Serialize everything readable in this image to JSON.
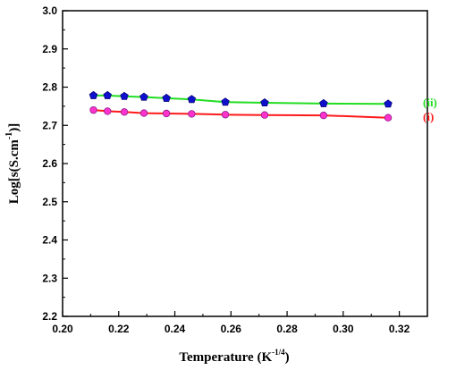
{
  "chart_data": {
    "type": "line",
    "xlabel": "Temperature (K",
    "xlabel_sup": "-1/4",
    "xlabel_close": ")",
    "ylabel": "Log[s(S.cm",
    "ylabel_sup": "-1",
    "ylabel_close": ")]",
    "xlim": [
      0.2,
      0.33
    ],
    "ylim": [
      2.2,
      3.0
    ],
    "x_ticks": [
      "0.20",
      "0.22",
      "0.24",
      "0.26",
      "0.28",
      "0.30",
      "0.32"
    ],
    "y_ticks": [
      "2.2",
      "2.3",
      "2.4",
      "2.5",
      "2.6",
      "2.7",
      "2.8",
      "2.9",
      "3.0"
    ],
    "grid": false,
    "series": [
      {
        "name": "(i)",
        "color": "#ff1a1a",
        "marker": "circle",
        "marker_color": "#ff33cc",
        "x": [
          0.211,
          0.216,
          0.222,
          0.229,
          0.237,
          0.246,
          0.258,
          0.272,
          0.293,
          0.316
        ],
        "y": [
          2.74,
          2.737,
          2.735,
          2.732,
          2.731,
          2.73,
          2.728,
          2.727,
          2.726,
          2.72
        ]
      },
      {
        "name": "(ii)",
        "color": "#22dd22",
        "marker": "pentagon",
        "marker_color": "#1010cc",
        "x": [
          0.211,
          0.216,
          0.222,
          0.229,
          0.237,
          0.246,
          0.258,
          0.272,
          0.293,
          0.316
        ],
        "y": [
          2.778,
          2.778,
          2.776,
          2.774,
          2.771,
          2.768,
          2.761,
          2.759,
          2.757,
          2.756
        ]
      }
    ]
  }
}
